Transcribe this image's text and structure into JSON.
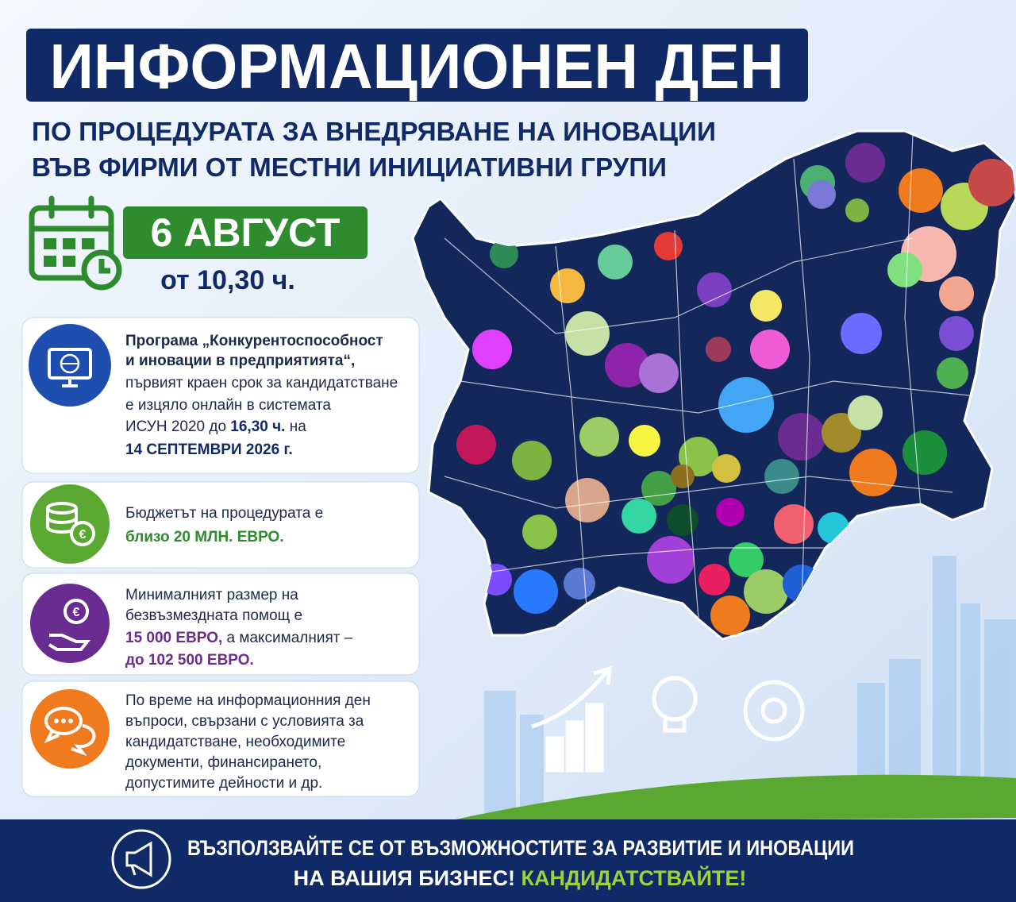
{
  "header": {
    "title": "ИНФОРМАЦИОНЕН ДЕН",
    "subtitle": [
      "ПО ПРОЦЕДУРАТА ЗА ВНЕДРЯВАНЕ НА ИНОВАЦИИ",
      "ВЪВ ФИРМИ ОТ МЕСТНИ ИНИЦИАТИВНИ ГРУПИ"
    ]
  },
  "event": {
    "date": "6 АВГУСТ",
    "time": "от 10,30 ч."
  },
  "cards": [
    {
      "lines": [
        [
          "Програма „Конкурентоспособност"
        ],
        [
          "и иновации в предприятията“,"
        ],
        [
          "първият краен срок за кандидатстване"
        ],
        [
          "е изцяло онлайн в системата"
        ],
        [
          "ИСУН 2020 до ",
          "16,30 ч.",
          " на"
        ],
        [
          "14 СЕПТЕМВРИ 2026 г."
        ]
      ]
    },
    {
      "lines": [
        [
          "Бюджетът на процедурата е"
        ],
        [
          "близо 20 МЛН. ЕВРО."
        ]
      ]
    },
    {
      "lines": [
        [
          "Минималният размер на"
        ],
        [
          "безвъзмездната помощ е"
        ],
        [
          "15 000 ЕВРО,",
          " а максималният –"
        ],
        [
          "до 102 500 ЕВРО."
        ]
      ]
    },
    {
      "lines": [
        [
          "По време на информационния ден"
        ],
        [
          "въпроси, свързани с условията за"
        ],
        [
          "кандидатстване, необходимите"
        ],
        [
          "документи, финансирането,"
        ],
        [
          "допустимите дейности и др."
        ]
      ]
    }
  ],
  "footer": {
    "lines": [
      [
        "ВЪЗПОЛЗВАЙТЕ СЕ ОТ ВЪЗМОЖНОСТИТЕ ЗА РАЗВИТИЕ И ИНОВАЦИИ"
      ],
      [
        "НА ВАШИЯ БИЗНЕС!",
        " КАНДИДАТСТВАЙТЕ!"
      ]
    ]
  }
}
